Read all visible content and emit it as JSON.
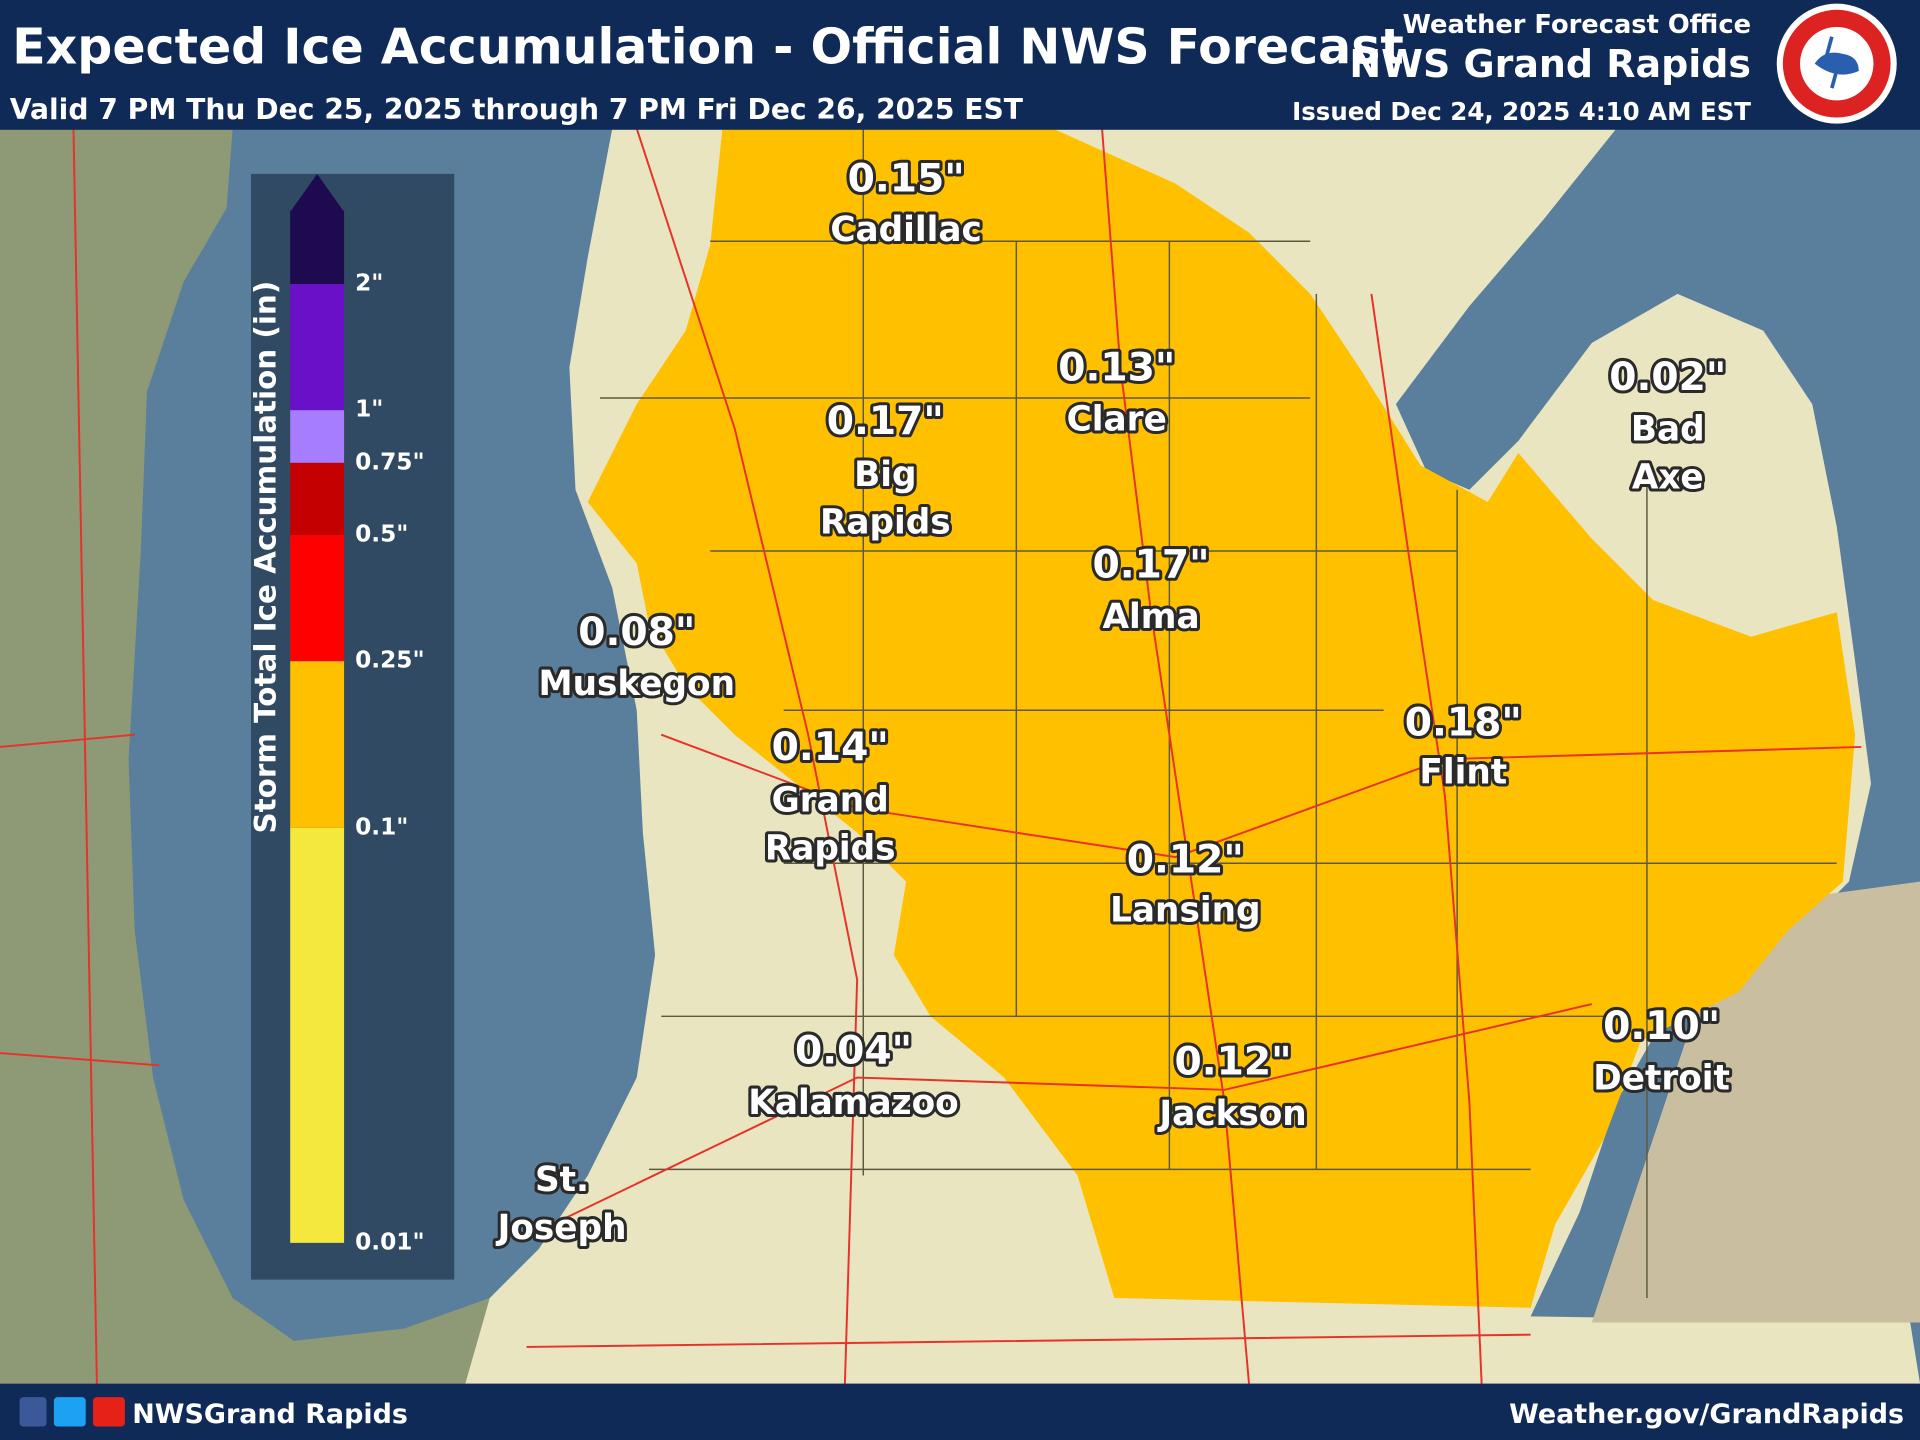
{
  "header": {
    "title": "Expected Ice Accumulation - Official NWS Forecast",
    "valid": "Valid 7 PM Thu Dec 25, 2025 through 7 PM Fri Dec 26, 2025 EST",
    "office_label": "Weather Forecast Office",
    "office": "NWS Grand Rapids",
    "issued": "Issued Dec 24, 2025 4:10 AM EST"
  },
  "legend": {
    "title": "Storm Total Ice Accumulation (in)",
    "ticks": [
      "2\"",
      "1\"",
      "0.75\"",
      "0.5\"",
      "0.25\"",
      "0.1\"",
      "0.01\""
    ],
    "colors": [
      "#1e0b4f",
      "#6a10c8",
      "#a77dff",
      "#c40000",
      "#ff0000",
      "#ffc000",
      "#f5e83c"
    ]
  },
  "cities": [
    {
      "value": "0.15\"",
      "name": [
        "Cadillac"
      ]
    },
    {
      "value": "0.17\"",
      "name": [
        "Big",
        "Rapids"
      ]
    },
    {
      "value": "0.13\"",
      "name": [
        "Clare"
      ]
    },
    {
      "value": "0.02\"",
      "name": [
        "Bad",
        "Axe"
      ]
    },
    {
      "value": "0.17\"",
      "name": [
        "Alma"
      ]
    },
    {
      "value": "0.08\"",
      "name": [
        "Muskegon"
      ]
    },
    {
      "value": "0.14\"",
      "name": [
        "Grand",
        "Rapids"
      ]
    },
    {
      "value": "0.18\"",
      "name": [
        "Flint"
      ]
    },
    {
      "value": "0.12\"",
      "name": [
        "Lansing"
      ]
    },
    {
      "value": "0.04\"",
      "name": [
        "Kalamazoo"
      ]
    },
    {
      "value": "0.12\"",
      "name": [
        "Jackson"
      ]
    },
    {
      "value": "0.10\"",
      "name": [
        "Detroit"
      ]
    },
    {
      "name": [
        "St.",
        "Joseph"
      ]
    }
  ],
  "footer": {
    "social": "NWSGrand Rapids",
    "website": "Weather.gov/GrandRapids"
  }
}
